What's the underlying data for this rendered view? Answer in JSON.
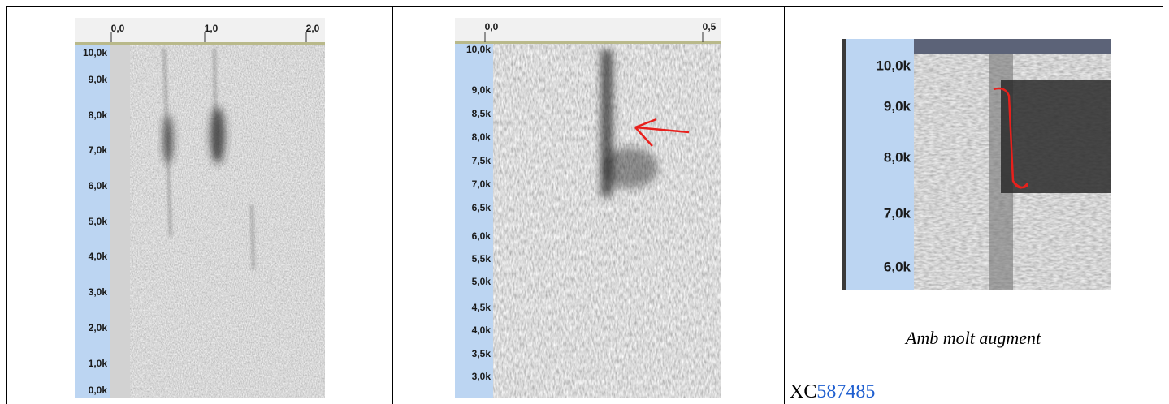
{
  "panel_1": {
    "x_ticks": [
      "0,0",
      "1,0",
      "2,0"
    ],
    "y_ticks": [
      "10,0k",
      "9,0k",
      "8,0k",
      "7,0k",
      "6,0k",
      "5,0k",
      "4,0k",
      "3,0k",
      "2,0k",
      "1,0k",
      "0,0k"
    ]
  },
  "panel_2": {
    "x_ticks": [
      "0,0",
      "0,5"
    ],
    "y_ticks": [
      "10,0k",
      "9,0k",
      "8,5k",
      "8,0k",
      "7,5k",
      "7,0k",
      "6,5k",
      "6,0k",
      "5,5k",
      "5,0k",
      "4,5k",
      "4,0k",
      "3,5k",
      "3,0k"
    ]
  },
  "panel_3": {
    "y_ticks": [
      "10,0k",
      "9,0k",
      "8,0k",
      "7,0k",
      "6,0k"
    ],
    "caption": "Amb molt augment",
    "reference": {
      "prefix": "XC",
      "link": "587485"
    }
  }
}
